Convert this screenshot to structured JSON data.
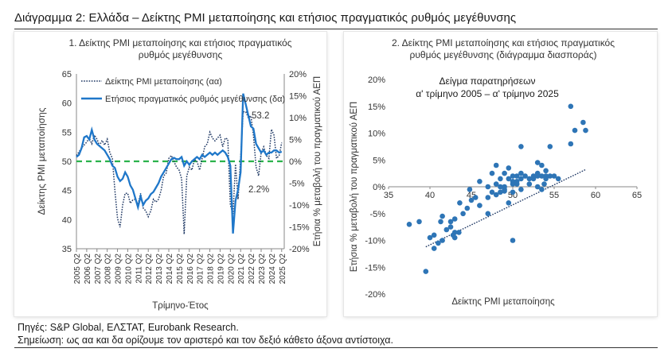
{
  "header": {
    "title": "Διάγραμμα 2: Ελλάδα – Δείκτης PMI μεταποίησης και ετήσιος πραγματικός ρυθμός μεγέθυνσης"
  },
  "footer": {
    "sources": "Πηγές: S&P Global, ΕΛΣΤΑΤ, Eurobank Research.",
    "note": "Σημείωση: ως αα και δα ορίζουμε τον αριστερό και τον δεξιό κάθετο άξονα αντίστοιχα."
  },
  "colors": {
    "pmi": "#1f3864",
    "gdp": "#1f77c9",
    "zero_line": "#2bb24c",
    "scatter": "#2e75b6",
    "trend": "#1f3864"
  },
  "chart_data": [
    {
      "type": "line",
      "title_line1": "1. Δείκτης PMI μεταποίησης και ετήσιος πραγματικός",
      "title_line2": "ρυθμός μεγέθυνσης",
      "xlabel": "Τρίμηνο-Έτος",
      "ylabel_left": "Δείκτης PMI μεταποίησης",
      "ylabel_right": "Ετήσια % μεταβολή του πραγματικού ΑΕΠ",
      "ylim_left": [
        35,
        65
      ],
      "ylim_right": [
        -20,
        20
      ],
      "yticks_left": [
        "35",
        "40",
        "45",
        "50",
        "55",
        "60",
        "65"
      ],
      "yticks_right": [
        "-20%",
        "-15%",
        "-10%",
        "-5%",
        "0%",
        "5%",
        "10%",
        "15%",
        "20%"
      ],
      "x_tick_labels": [
        "2005 Q2",
        "2006 Q2",
        "2007 Q2",
        "2008 Q2",
        "2009 Q2",
        "2010 Q2",
        "2011 Q2",
        "2012 Q2",
        "2013 Q2",
        "2014 Q2",
        "2015 Q2",
        "2016 Q2",
        "2017 Q2",
        "2018 Q2",
        "2019 Q2",
        "2020 Q2",
        "2021 Q2",
        "2022 Q2",
        "2023 Q2",
        "2024 Q2",
        "2025 Q2"
      ],
      "x_range": [
        2005.0,
        2025.25
      ],
      "annotations": [
        {
          "text": "53.2",
          "series": "pmi"
        },
        {
          "text": "2.2%",
          "series": "gdp"
        }
      ],
      "series": [
        {
          "name": "Δείκτης PMI μεταποίησης (αα)",
          "axis": "left",
          "style": "dotted",
          "points": [
            [
              2005.0,
              51.0
            ],
            [
              2005.25,
              51.6
            ],
            [
              2005.5,
              52.3
            ],
            [
              2005.75,
              52.8
            ],
            [
              2006.0,
              53.3
            ],
            [
              2006.25,
              54.0
            ],
            [
              2006.5,
              53.0
            ],
            [
              2006.75,
              54.5
            ],
            [
              2007.0,
              53.8
            ],
            [
              2007.25,
              52.7
            ],
            [
              2007.5,
              53.6
            ],
            [
              2007.75,
              52.8
            ],
            [
              2008.0,
              53.8
            ],
            [
              2008.25,
              51.5
            ],
            [
              2008.5,
              50.5
            ],
            [
              2008.75,
              45.0
            ],
            [
              2009.0,
              40.2
            ],
            [
              2009.25,
              38.7
            ],
            [
              2009.5,
              42.5
            ],
            [
              2009.75,
              44.5
            ],
            [
              2010.0,
              44.5
            ],
            [
              2010.25,
              42.8
            ],
            [
              2010.5,
              43.4
            ],
            [
              2010.75,
              43.5
            ],
            [
              2011.0,
              42.6
            ],
            [
              2011.25,
              44.5
            ],
            [
              2011.5,
              42.0
            ],
            [
              2011.75,
              41.5
            ],
            [
              2012.0,
              40.5
            ],
            [
              2012.25,
              41.5
            ],
            [
              2012.5,
              43.5
            ],
            [
              2012.75,
              43.0
            ],
            [
              2013.0,
              43.5
            ],
            [
              2013.25,
              45.0
            ],
            [
              2013.5,
              47.5
            ],
            [
              2013.75,
              48.0
            ],
            [
              2014.0,
              50.5
            ],
            [
              2014.25,
              51.0
            ],
            [
              2014.5,
              50.0
            ],
            [
              2014.75,
              49.0
            ],
            [
              2015.0,
              48.5
            ],
            [
              2015.25,
              47.0
            ],
            [
              2015.5,
              37.5
            ],
            [
              2015.75,
              47.5
            ],
            [
              2016.0,
              49.0
            ],
            [
              2016.25,
              48.5
            ],
            [
              2016.5,
              50.3
            ],
            [
              2016.75,
              50.0
            ],
            [
              2017.0,
              48.5
            ],
            [
              2017.25,
              50.5
            ],
            [
              2017.5,
              52.5
            ],
            [
              2017.75,
              53.0
            ],
            [
              2018.0,
              55.0
            ],
            [
              2018.25,
              54.0
            ],
            [
              2018.5,
              53.5
            ],
            [
              2018.75,
              54.0
            ],
            [
              2019.0,
              54.5
            ],
            [
              2019.25,
              52.5
            ],
            [
              2019.5,
              54.0
            ],
            [
              2019.75,
              53.8
            ],
            [
              2020.0,
              42.5
            ],
            [
              2020.25,
              41.0
            ],
            [
              2020.5,
              49.5
            ],
            [
              2020.75,
              43.5
            ],
            [
              2021.0,
              50.5
            ],
            [
              2021.25,
              58.5
            ],
            [
              2021.5,
              58.5
            ],
            [
              2021.75,
              57.5
            ],
            [
              2022.0,
              57.8
            ],
            [
              2022.25,
              54.5
            ],
            [
              2022.5,
              49.0
            ],
            [
              2022.75,
              47.5
            ],
            [
              2023.0,
              51.5
            ],
            [
              2023.25,
              52.5
            ],
            [
              2023.5,
              51.0
            ],
            [
              2023.75,
              50.5
            ],
            [
              2024.0,
              55.5
            ],
            [
              2024.25,
              54.5
            ],
            [
              2024.5,
              50.5
            ],
            [
              2024.75,
              51.0
            ],
            [
              2025.0,
              53.2
            ]
          ]
        },
        {
          "name": "Ετήσιος πραγματικός ρυθμός μεγέθυνσης (δα)",
          "axis": "right",
          "style": "solid",
          "points": [
            [
              2005.0,
              1.0
            ],
            [
              2005.25,
              1.5
            ],
            [
              2005.5,
              3.0
            ],
            [
              2005.75,
              5.5
            ],
            [
              2006.0,
              5.8
            ],
            [
              2006.25,
              5.0
            ],
            [
              2006.5,
              7.2
            ],
            [
              2006.75,
              5.0
            ],
            [
              2007.0,
              4.0
            ],
            [
              2007.25,
              3.5
            ],
            [
              2007.5,
              3.0
            ],
            [
              2007.75,
              2.5
            ],
            [
              2008.0,
              1.5
            ],
            [
              2008.25,
              0.5
            ],
            [
              2008.5,
              -1.0
            ],
            [
              2008.75,
              -1.5
            ],
            [
              2009.0,
              -3.5
            ],
            [
              2009.25,
              -4.5
            ],
            [
              2009.5,
              -4.0
            ],
            [
              2009.75,
              -2.5
            ],
            [
              2010.0,
              -3.5
            ],
            [
              2010.25,
              -5.5
            ],
            [
              2010.5,
              -6.5
            ],
            [
              2010.75,
              -8.5
            ],
            [
              2011.0,
              -10.5
            ],
            [
              2011.25,
              -8.0
            ],
            [
              2011.5,
              -10.0
            ],
            [
              2011.75,
              -9.0
            ],
            [
              2012.0,
              -8.5
            ],
            [
              2012.25,
              -7.5
            ],
            [
              2012.5,
              -7.0
            ],
            [
              2012.75,
              -6.0
            ],
            [
              2013.0,
              -5.0
            ],
            [
              2013.25,
              -3.5
            ],
            [
              2013.5,
              -2.5
            ],
            [
              2013.75,
              -1.5
            ],
            [
              2014.0,
              -0.5
            ],
            [
              2014.25,
              0.5
            ],
            [
              2014.5,
              0.8
            ],
            [
              2014.75,
              0.5
            ],
            [
              2015.0,
              0.5
            ],
            [
              2015.25,
              1.0
            ],
            [
              2015.5,
              -1.0
            ],
            [
              2015.75,
              0.0
            ],
            [
              2016.0,
              -0.8
            ],
            [
              2016.25,
              0.0
            ],
            [
              2016.5,
              0.5
            ],
            [
              2016.75,
              1.0
            ],
            [
              2017.0,
              0.5
            ],
            [
              2017.25,
              1.5
            ],
            [
              2017.5,
              1.0
            ],
            [
              2017.75,
              1.5
            ],
            [
              2018.0,
              2.0
            ],
            [
              2018.25,
              1.5
            ],
            [
              2018.5,
              2.0
            ],
            [
              2018.75,
              1.5
            ],
            [
              2019.0,
              2.0
            ],
            [
              2019.25,
              2.5
            ],
            [
              2019.5,
              2.0
            ],
            [
              2019.75,
              1.0
            ],
            [
              2020.0,
              -1.0
            ],
            [
              2020.25,
              -16.5
            ],
            [
              2020.5,
              -9.0
            ],
            [
              2020.75,
              -6.5
            ],
            [
              2021.0,
              -2.5
            ],
            [
              2021.25,
              15.5
            ],
            [
              2021.5,
              13.0
            ],
            [
              2021.75,
              10.5
            ],
            [
              2022.0,
              8.0
            ],
            [
              2022.25,
              7.5
            ],
            [
              2022.5,
              4.0
            ],
            [
              2022.75,
              3.0
            ],
            [
              2023.0,
              2.0
            ],
            [
              2023.25,
              2.5
            ],
            [
              2023.5,
              1.5
            ],
            [
              2023.75,
              2.0
            ],
            [
              2024.0,
              2.0
            ],
            [
              2024.25,
              2.5
            ],
            [
              2024.5,
              2.5
            ],
            [
              2024.75,
              2.0
            ],
            [
              2025.0,
              2.2
            ]
          ]
        }
      ]
    },
    {
      "type": "scatter",
      "title_line1": "2. Δείκτης PMI μεταποίησης και ετήσιος πραγματικός",
      "title_line2": "ρυθμός μεγέθυνσης (διάγραμμα διασποράς)",
      "inner_title_line1": "Δείγμα παρατηρήσεων",
      "inner_title_line2": "α' τρίμηνο 2005 – α' τρίμηνο 2025",
      "xlabel": "Δείκτης PMI μεταποίησης",
      "ylabel": "Ετήσια % μεταβολή του πραγματικού ΑΕΠ",
      "xlim": [
        35,
        65
      ],
      "ylim": [
        -20,
        20
      ],
      "xticks": [
        "35",
        "40",
        "45",
        "50",
        "55",
        "60",
        "65"
      ],
      "yticks": [
        "-20%",
        "-15%",
        "-10%",
        "-5%",
        "0%",
        "5%",
        "10%",
        "15%",
        "20%"
      ],
      "trend": [
        [
          39.5,
          -11.2
        ],
        [
          58.8,
          3.2
        ]
      ],
      "points": [
        [
          37.5,
          -7.0
        ],
        [
          38.7,
          -6.5
        ],
        [
          39.5,
          -15.8
        ],
        [
          40.0,
          -9.5
        ],
        [
          40.5,
          -9.0
        ],
        [
          40.5,
          -11.5
        ],
        [
          41.0,
          -10.5
        ],
        [
          41.3,
          -6.5
        ],
        [
          41.5,
          -5.5
        ],
        [
          41.5,
          -10.0
        ],
        [
          42.0,
          -8.0
        ],
        [
          42.5,
          -6.5
        ],
        [
          42.5,
          -7.5
        ],
        [
          42.8,
          -9.0
        ],
        [
          43.0,
          -9.5
        ],
        [
          43.0,
          -8.5
        ],
        [
          43.0,
          -6.0
        ],
        [
          43.5,
          -8.5
        ],
        [
          43.6,
          -3.0
        ],
        [
          44.0,
          -5.0
        ],
        [
          44.5,
          -4.0
        ],
        [
          44.8,
          -0.5
        ],
        [
          45.0,
          -2.5
        ],
        [
          45.5,
          -2.0
        ],
        [
          46.0,
          -3.5
        ],
        [
          46.0,
          1.0
        ],
        [
          47.0,
          -2.0
        ],
        [
          47.0,
          0.0
        ],
        [
          47.0,
          -5.0
        ],
        [
          47.5,
          -1.0
        ],
        [
          47.5,
          2.5
        ],
        [
          48.0,
          0.5
        ],
        [
          48.0,
          -1.5
        ],
        [
          48.0,
          4.0
        ],
        [
          48.5,
          1.5
        ],
        [
          48.5,
          0.0
        ],
        [
          48.5,
          -1.0
        ],
        [
          49.0,
          2.5
        ],
        [
          49.0,
          -0.5
        ],
        [
          49.0,
          0.0
        ],
        [
          49.0,
          -0.8
        ],
        [
          49.5,
          -3.0
        ],
        [
          49.5,
          1.5
        ],
        [
          49.5,
          3.5
        ],
        [
          50.0,
          0.5
        ],
        [
          50.0,
          -1.0
        ],
        [
          50.0,
          1.0
        ],
        [
          50.0,
          2.0
        ],
        [
          50.0,
          -10.0
        ],
        [
          50.5,
          1.0
        ],
        [
          50.5,
          2.0
        ],
        [
          50.5,
          0.5
        ],
        [
          51.0,
          1.5
        ],
        [
          51.0,
          2.5
        ],
        [
          51.0,
          7.5
        ],
        [
          51.0,
          -0.5
        ],
        [
          51.5,
          2.0
        ],
        [
          52.0,
          1.5
        ],
        [
          52.0,
          0.5
        ],
        [
          52.5,
          2.0
        ],
        [
          52.5,
          1.5
        ],
        [
          53.0,
          2.0
        ],
        [
          53.0,
          4.5
        ],
        [
          53.0,
          0.0
        ],
        [
          53.0,
          2.5
        ],
        [
          53.5,
          2.0
        ],
        [
          53.5,
          4.0
        ],
        [
          53.5,
          -0.5
        ],
        [
          53.8,
          0.5
        ],
        [
          54.0,
          1.5
        ],
        [
          54.0,
          2.0
        ],
        [
          54.0,
          3.0
        ],
        [
          54.5,
          2.0
        ],
        [
          54.5,
          7.5
        ],
        [
          55.0,
          2.0
        ],
        [
          55.5,
          1.5
        ],
        [
          57.0,
          8.0
        ],
        [
          57.5,
          10.5
        ],
        [
          57.0,
          15.0
        ],
        [
          58.5,
          12.0
        ],
        [
          58.8,
          10.5
        ]
      ]
    }
  ]
}
